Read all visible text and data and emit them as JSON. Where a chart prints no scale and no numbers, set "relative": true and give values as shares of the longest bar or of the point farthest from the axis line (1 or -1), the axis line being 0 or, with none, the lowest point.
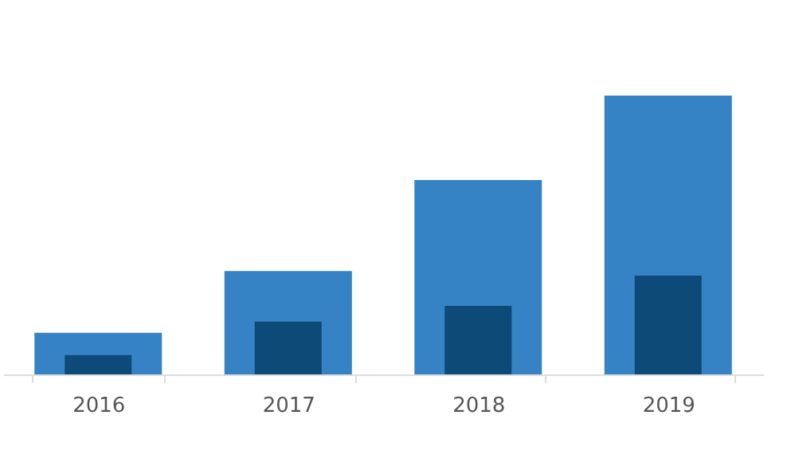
{
  "chart_data": {
    "type": "bar",
    "relative": true,
    "categories": [
      "2016",
      "2017",
      "2018",
      "2019"
    ],
    "series": [
      {
        "color": "#3582c4",
        "values": [
          0.149,
          0.371,
          0.697,
          1
        ]
      },
      {
        "color": "#0e4a78",
        "values": [
          0.069,
          0.189,
          0.246,
          0.354
        ]
      }
    ]
  }
}
